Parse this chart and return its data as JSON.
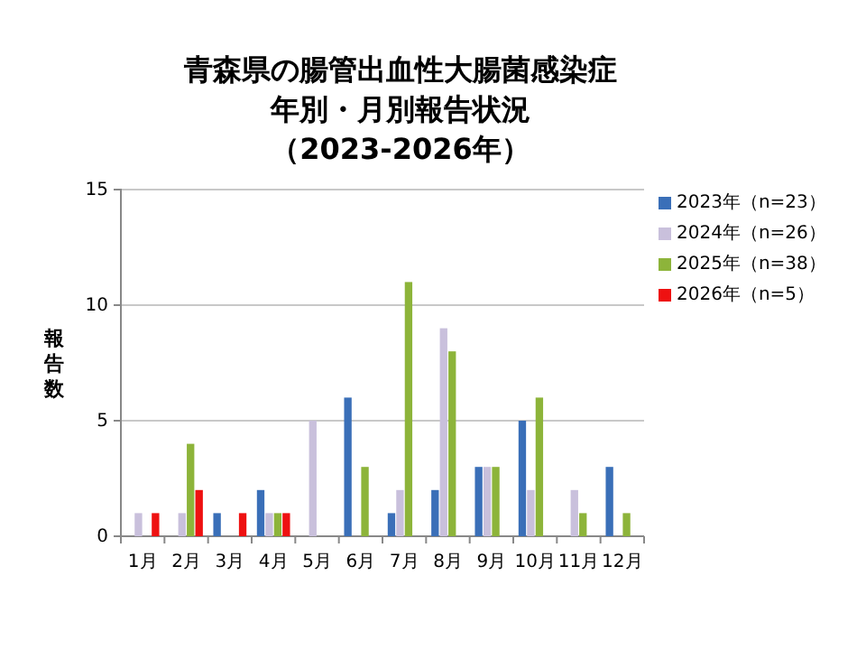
{
  "chart_data": {
    "type": "bar",
    "title": "青森県の腸管出血性大腸菌感染症",
    "subtitle": "年別・月別報告状況",
    "annotations": [
      "（2023-2026年）"
    ],
    "ylabel": "報告数",
    "categories": [
      "1月",
      "2月",
      "3月",
      "4月",
      "5月",
      "6月",
      "7月",
      "8月",
      "9月",
      "10月",
      "11月",
      "12月"
    ],
    "series": [
      {
        "name": "2023年（n=23）",
        "color": "#3a6fb8",
        "values": [
          0,
          0,
          1,
          2,
          0,
          6,
          1,
          2,
          3,
          5,
          0,
          3
        ]
      },
      {
        "name": "2024年（n=26）",
        "color": "#c9c0dc",
        "values": [
          1,
          1,
          0,
          1,
          5,
          0,
          2,
          9,
          3,
          2,
          2,
          0
        ]
      },
      {
        "name": "2025年（n=38）",
        "color": "#8db43a",
        "values": [
          0,
          4,
          0,
          1,
          0,
          3,
          11,
          8,
          3,
          6,
          1,
          1
        ]
      },
      {
        "name": "2026年（n=5）",
        "color": "#ee1111",
        "values": [
          1,
          2,
          1,
          1,
          null,
          null,
          null,
          null,
          null,
          null,
          null,
          null
        ]
      }
    ],
    "ylim": [
      0,
      15
    ],
    "yticks": [
      0,
      5,
      10,
      15
    ],
    "grid": "y",
    "legend": "right"
  }
}
